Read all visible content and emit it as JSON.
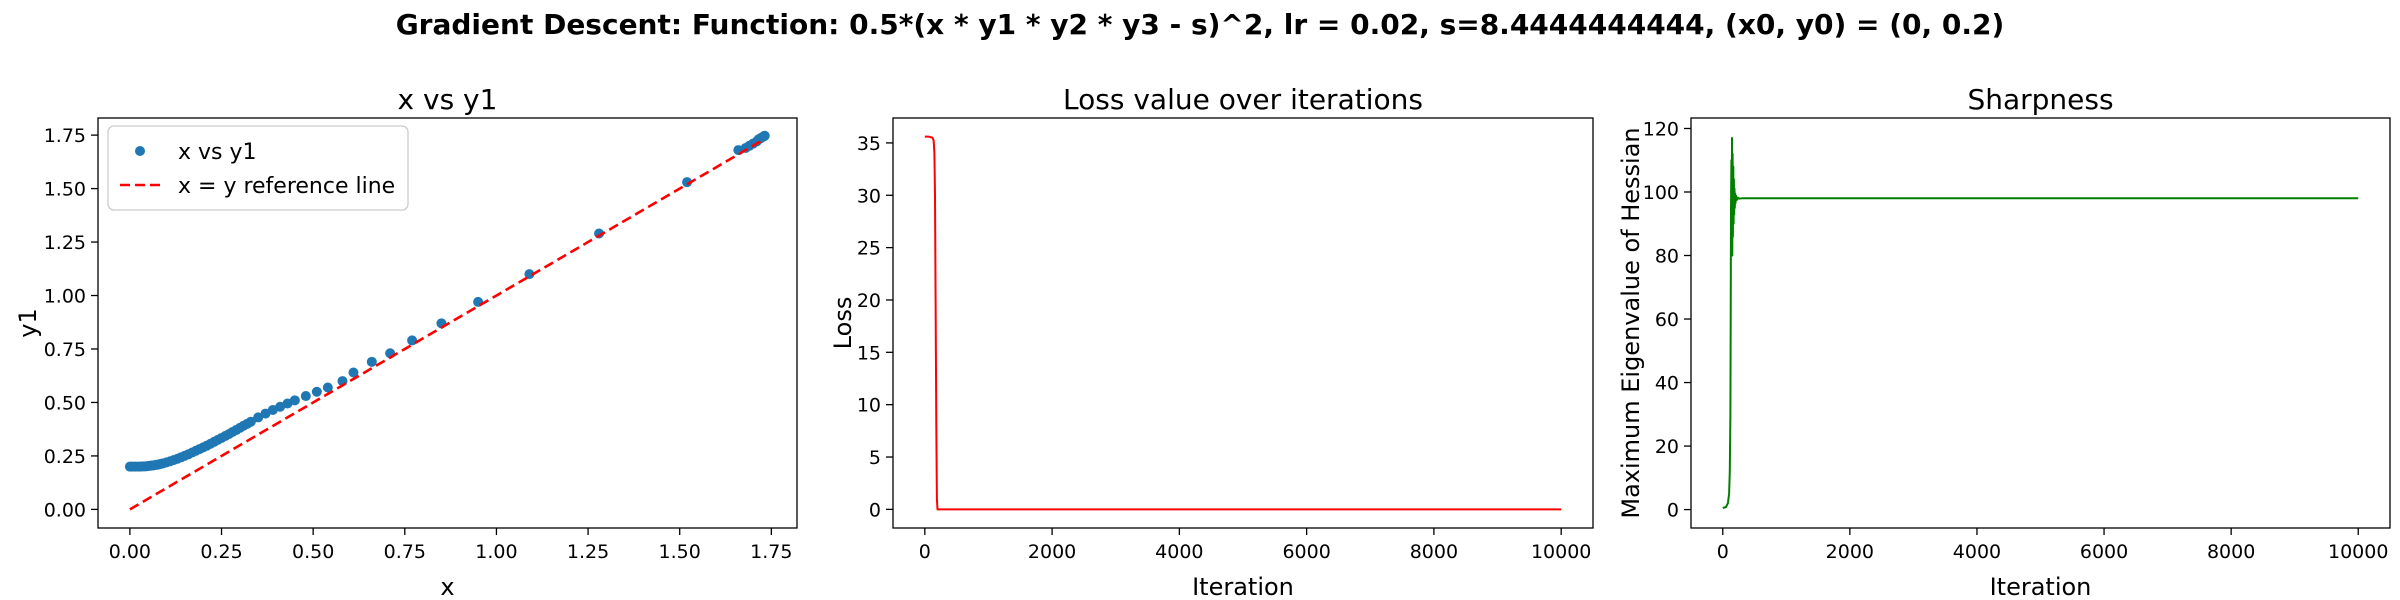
{
  "suptitle": "Gradient Descent: Function: 0.5*(x * y1 * y2 * y3 - s)^2, lr = 0.02, s=8.4444444444, (x0, y0) = (0, 0.2)",
  "chart_data": [
    {
      "type": "scatter",
      "title": "x vs y1",
      "xlabel": "x",
      "ylabel": "y1",
      "xlim": [
        -0.087,
        1.82
      ],
      "ylim": [
        -0.087,
        1.83
      ],
      "xticks": [
        0.0,
        0.25,
        0.5,
        0.75,
        1.0,
        1.25,
        1.5,
        1.75
      ],
      "xtick_labels": [
        "0.00",
        "0.25",
        "0.50",
        "0.75",
        "1.00",
        "1.25",
        "1.50",
        "1.75"
      ],
      "yticks": [
        0.0,
        0.25,
        0.5,
        0.75,
        1.0,
        1.25,
        1.5,
        1.75
      ],
      "ytick_labels": [
        "0.00",
        "0.25",
        "0.50",
        "0.75",
        "1.00",
        "1.25",
        "1.50",
        "1.75"
      ],
      "legend_position": "upper-left",
      "series": [
        {
          "name": "x vs y1",
          "kind": "scatter",
          "color": "#1f77b4",
          "points": [
            [
              0.0,
              0.2
            ],
            [
              0.005,
              0.2
            ],
            [
              0.01,
              0.2
            ],
            [
              0.015,
              0.2
            ],
            [
              0.02,
              0.2
            ],
            [
              0.025,
              0.2
            ],
            [
              0.03,
              0.2
            ],
            [
              0.035,
              0.201
            ],
            [
              0.04,
              0.201
            ],
            [
              0.045,
              0.202
            ],
            [
              0.05,
              0.203
            ],
            [
              0.055,
              0.204
            ],
            [
              0.06,
              0.205
            ],
            [
              0.065,
              0.206
            ],
            [
              0.07,
              0.208
            ],
            [
              0.075,
              0.209
            ],
            [
              0.08,
              0.211
            ],
            [
              0.085,
              0.213
            ],
            [
              0.09,
              0.215
            ],
            [
              0.1,
              0.22
            ],
            [
              0.11,
              0.225
            ],
            [
              0.12,
              0.231
            ],
            [
              0.13,
              0.237
            ],
            [
              0.14,
              0.244
            ],
            [
              0.15,
              0.251
            ],
            [
              0.16,
              0.258
            ],
            [
              0.17,
              0.266
            ],
            [
              0.18,
              0.274
            ],
            [
              0.19,
              0.282
            ],
            [
              0.2,
              0.29
            ],
            [
              0.21,
              0.298
            ],
            [
              0.22,
              0.307
            ],
            [
              0.23,
              0.316
            ],
            [
              0.24,
              0.325
            ],
            [
              0.25,
              0.334
            ],
            [
              0.26,
              0.343
            ],
            [
              0.27,
              0.352
            ],
            [
              0.28,
              0.362
            ],
            [
              0.29,
              0.371
            ],
            [
              0.3,
              0.381
            ],
            [
              0.31,
              0.391
            ],
            [
              0.32,
              0.4
            ],
            [
              0.33,
              0.41
            ],
            [
              0.35,
              0.43
            ],
            [
              0.37,
              0.448
            ],
            [
              0.39,
              0.465
            ],
            [
              0.41,
              0.48
            ],
            [
              0.43,
              0.495
            ],
            [
              0.45,
              0.51
            ],
            [
              0.48,
              0.53
            ],
            [
              0.51,
              0.55
            ],
            [
              0.54,
              0.57
            ],
            [
              0.58,
              0.6
            ],
            [
              0.61,
              0.64
            ],
            [
              0.66,
              0.69
            ],
            [
              0.71,
              0.73
            ],
            [
              0.77,
              0.79
            ],
            [
              0.85,
              0.87
            ],
            [
              0.95,
              0.97
            ],
            [
              1.09,
              1.1
            ],
            [
              1.28,
              1.29
            ],
            [
              1.52,
              1.53
            ],
            [
              1.66,
              1.68
            ],
            [
              1.68,
              1.69
            ],
            [
              1.69,
              1.7
            ],
            [
              1.7,
              1.71
            ],
            [
              1.71,
              1.72
            ],
            [
              1.715,
              1.73
            ],
            [
              1.72,
              1.735
            ],
            [
              1.725,
              1.74
            ],
            [
              1.73,
              1.745
            ],
            [
              1.732,
              1.747
            ]
          ]
        },
        {
          "name": "x = y reference line",
          "kind": "line",
          "color": "#ff0000",
          "dash": true,
          "points": [
            [
              0.0,
              0.0
            ],
            [
              1.732,
              1.732
            ]
          ]
        }
      ]
    },
    {
      "type": "line",
      "title": "Loss value over iterations",
      "xlabel": "Iteration",
      "ylabel": "Loss",
      "xlim": [
        -500,
        10500
      ],
      "ylim": [
        -1.78,
        37.38
      ],
      "xticks": [
        0,
        2000,
        4000,
        6000,
        8000,
        10000
      ],
      "xtick_labels": [
        "0",
        "2000",
        "4000",
        "6000",
        "8000",
        "10000"
      ],
      "yticks": [
        0,
        5,
        10,
        15,
        20,
        25,
        30,
        35
      ],
      "ytick_labels": [
        "0",
        "5",
        "10",
        "15",
        "20",
        "25",
        "30",
        "35"
      ],
      "series": [
        {
          "name": "",
          "color": "#ff0000",
          "x": [
            0,
            60,
            120,
            140,
            150,
            160,
            170,
            180,
            190,
            200,
            10000
          ],
          "y": [
            35.6,
            35.6,
            35.5,
            35.2,
            34.0,
            30.0,
            20.0,
            8.0,
            1.0,
            0.0,
            0.0
          ]
        }
      ]
    },
    {
      "type": "line",
      "title": "Sharpness",
      "xlabel": "Iteration",
      "ylabel": "Maximum Eigenvalue of Hessian",
      "xlim": [
        -500,
        10500
      ],
      "ylim": [
        -5.8,
        123.3
      ],
      "xticks": [
        0,
        2000,
        4000,
        6000,
        8000,
        10000
      ],
      "xtick_labels": [
        "0",
        "2000",
        "4000",
        "6000",
        "8000",
        "10000"
      ],
      "yticks": [
        0,
        20,
        40,
        60,
        80,
        100,
        120
      ],
      "ytick_labels": [
        "0",
        "20",
        "40",
        "60",
        "80",
        "100",
        "120"
      ],
      "series": [
        {
          "name": "",
          "color": "#008000",
          "x": [
            0,
            50,
            80,
            100,
            110,
            120,
            125,
            130,
            135,
            140,
            145,
            150,
            155,
            160,
            165,
            170,
            175,
            180,
            185,
            190,
            195,
            200,
            210,
            220,
            240,
            260,
            300,
            10000
          ],
          "y": [
            0.5,
            0.8,
            2,
            5,
            12,
            30,
            60,
            95,
            110,
            82,
            117,
            80,
            112,
            86,
            108,
            90,
            104,
            93,
            101,
            95,
            99.5,
            96.5,
            98.8,
            97.5,
            98.2,
            97.9,
            98,
            98
          ]
        }
      ]
    }
  ]
}
